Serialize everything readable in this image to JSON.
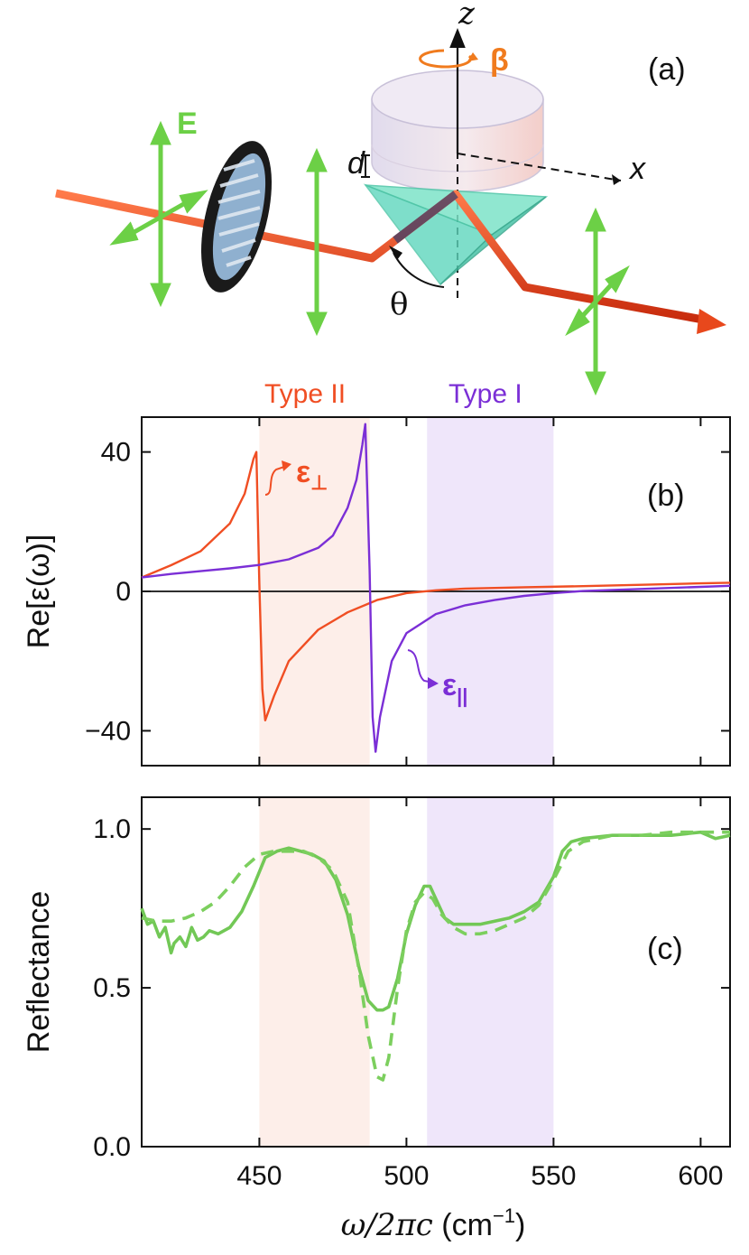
{
  "colors": {
    "red": "#f04e23",
    "purple": "#7b2fd6",
    "green": "#72c856",
    "green_dash": "#7ccf5e",
    "type2_band": "#fdeee9",
    "type1_band": "#efe6fa",
    "axis": "#111111"
  },
  "schematic": {
    "panel_label": "(a)",
    "field_label": "E",
    "z_label": "z",
    "x_label": "x",
    "beta_label": "β",
    "d_label": "d",
    "theta_label": "θ"
  },
  "bands": {
    "type2_label": "Type II",
    "type1_label": "Type I"
  },
  "xaxis": {
    "label_math": "ω/2πc",
    "label_unit": " (cm",
    "label_sup": "−1",
    "label_close": ")",
    "ticks": [
      "450",
      "500",
      "550",
      "600"
    ]
  },
  "chart_data": [
    {
      "type": "line",
      "panel_label": "(b)",
      "ylabel": "Re[ε(ω)]",
      "xlim": [
        410,
        610
      ],
      "ylim": [
        -50,
        50
      ],
      "yticks": [
        "40",
        "0",
        "−40"
      ],
      "annotation_perp": "ε",
      "annotation_perp_sub": "⊥",
      "annotation_par": "ε",
      "annotation_par_sub": "||",
      "bands": [
        {
          "label": "Type II",
          "x": [
            450.0,
            487.5
          ]
        },
        {
          "label": "Type I",
          "x": [
            507.0,
            550.0
          ]
        }
      ],
      "series": [
        {
          "name": "ε⊥",
          "x": [
            410,
            420,
            430,
            440,
            445,
            448,
            449,
            450,
            451,
            452,
            455,
            460,
            470,
            480,
            490,
            500,
            510,
            520,
            540,
            560,
            580,
            600,
            610
          ],
          "y": [
            4,
            7.5,
            11.5,
            19.5,
            28,
            38,
            40,
            2,
            -28,
            -37,
            -30,
            -20,
            -11,
            -6,
            -2.5,
            -0.5,
            0.3,
            0.8,
            1.2,
            1.5,
            1.9,
            2.3,
            2.5
          ]
        },
        {
          "name": "ε||",
          "x": [
            410,
            420,
            430,
            440,
            450,
            460,
            470,
            475,
            480,
            483,
            485,
            486,
            487.5,
            488.5,
            489.5,
            491,
            495,
            500,
            510,
            520,
            530,
            540,
            550,
            560,
            580,
            600,
            610
          ],
          "y": [
            4,
            5,
            5.8,
            6.6,
            7.6,
            9.2,
            12.5,
            16,
            24,
            32,
            42,
            48,
            6,
            -36,
            -46,
            -36,
            -20,
            -12,
            -6.5,
            -4,
            -2.5,
            -1.3,
            -0.5,
            0.1,
            0.7,
            1.3,
            1.6
          ]
        }
      ]
    },
    {
      "type": "line",
      "panel_label": "(c)",
      "ylabel": "Reflectance",
      "xlim": [
        410,
        610
      ],
      "ylim": [
        0,
        1.1
      ],
      "yticks": [
        "1.0",
        "0.5",
        "0.0"
      ],
      "bands": [
        {
          "label": "Type II",
          "x": [
            450.0,
            487.5
          ]
        },
        {
          "label": "Type I",
          "x": [
            507.0,
            550.0
          ]
        }
      ],
      "series": [
        {
          "style": "solid",
          "x": [
            410,
            412,
            414,
            416,
            418,
            420,
            421,
            423,
            425,
            427,
            429,
            431,
            433,
            436,
            440,
            444,
            448,
            452,
            456,
            460,
            464,
            468,
            472,
            476,
            480,
            484,
            487,
            490,
            492,
            494,
            497,
            500,
            503,
            506,
            508,
            510,
            513,
            516,
            520,
            525,
            530,
            535,
            540,
            545,
            550,
            553,
            556,
            560,
            570,
            580,
            590,
            600,
            605,
            610
          ],
          "y": [
            0.75,
            0.7,
            0.71,
            0.66,
            0.69,
            0.61,
            0.64,
            0.66,
            0.63,
            0.69,
            0.65,
            0.66,
            0.68,
            0.67,
            0.69,
            0.74,
            0.82,
            0.91,
            0.93,
            0.94,
            0.93,
            0.92,
            0.9,
            0.84,
            0.73,
            0.56,
            0.46,
            0.43,
            0.43,
            0.44,
            0.53,
            0.67,
            0.76,
            0.82,
            0.82,
            0.78,
            0.72,
            0.7,
            0.7,
            0.7,
            0.71,
            0.72,
            0.74,
            0.77,
            0.85,
            0.93,
            0.96,
            0.97,
            0.98,
            0.98,
            0.98,
            0.99,
            0.97,
            0.98
          ]
        },
        {
          "style": "dashed",
          "x": [
            410,
            415,
            420,
            425,
            430,
            435,
            440,
            445,
            450,
            455,
            460,
            465,
            470,
            475,
            480,
            484,
            487,
            490,
            492,
            494,
            497,
            500,
            503,
            506,
            509,
            512,
            516,
            520,
            525,
            530,
            535,
            540,
            545,
            550,
            555,
            560,
            570,
            580,
            590,
            600,
            610
          ],
          "y": [
            0.72,
            0.71,
            0.71,
            0.72,
            0.74,
            0.77,
            0.82,
            0.88,
            0.92,
            0.93,
            0.93,
            0.93,
            0.91,
            0.87,
            0.77,
            0.55,
            0.35,
            0.22,
            0.21,
            0.28,
            0.5,
            0.68,
            0.77,
            0.8,
            0.78,
            0.73,
            0.69,
            0.67,
            0.67,
            0.68,
            0.7,
            0.72,
            0.76,
            0.84,
            0.93,
            0.96,
            0.98,
            0.98,
            0.99,
            0.99,
            0.99
          ]
        }
      ]
    }
  ]
}
